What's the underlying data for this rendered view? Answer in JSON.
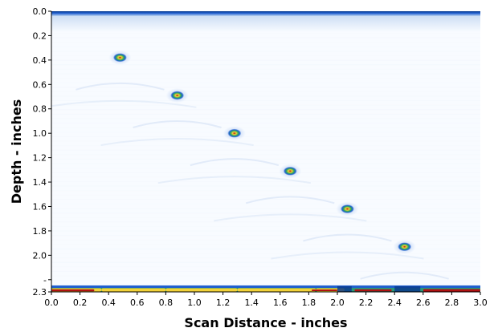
{
  "chart_data": {
    "type": "heatmap",
    "title": "",
    "xlabel": "Scan Distance - inches",
    "ylabel": "Depth - inches",
    "xlim": [
      0.0,
      3.0
    ],
    "ylim": [
      0.0,
      2.3
    ],
    "y_inverted": true,
    "x_ticks": [
      "0.0",
      "0.2",
      "0.4",
      "0.6",
      "0.8",
      "1.0",
      "1.2",
      "1.4",
      "1.6",
      "1.8",
      "2.0",
      "2.2",
      "2.4",
      "2.6",
      "2.8",
      "3.0"
    ],
    "y_ticks": [
      {
        "value": 0.0,
        "label": "0.0"
      },
      {
        "value": 0.2,
        "label": "0.2"
      },
      {
        "value": 0.4,
        "label": "0.4"
      },
      {
        "value": 0.6,
        "label": "0.6"
      },
      {
        "value": 0.8,
        "label": "0.8"
      },
      {
        "value": 1.0,
        "label": "1.0"
      },
      {
        "value": 1.2,
        "label": "1.2"
      },
      {
        "value": 1.4,
        "label": "1.4"
      },
      {
        "value": 1.6,
        "label": "1.6"
      },
      {
        "value": 1.8,
        "label": "1.8"
      },
      {
        "value": 2.0,
        "label": "2.0"
      },
      {
        "value": 2.2,
        "label": "-"
      },
      {
        "value": 2.3,
        "label": "2.3"
      }
    ],
    "reflectors": [
      {
        "x": 0.48,
        "depth": 0.38
      },
      {
        "x": 0.88,
        "depth": 0.69
      },
      {
        "x": 1.28,
        "depth": 1.0
      },
      {
        "x": 1.67,
        "depth": 1.31
      },
      {
        "x": 2.07,
        "depth": 1.62
      },
      {
        "x": 2.47,
        "depth": 1.93
      }
    ],
    "surface_echo_depth": 0.0,
    "backwall_depth": 2.28,
    "grid": false,
    "colors": {
      "background": "#f8fbff",
      "faint": "#dce8f6",
      "low": "#2f6fd6",
      "mid": "#0a3b8c",
      "high_yellow": "#f2d23a",
      "high_red": "#b01212"
    }
  }
}
